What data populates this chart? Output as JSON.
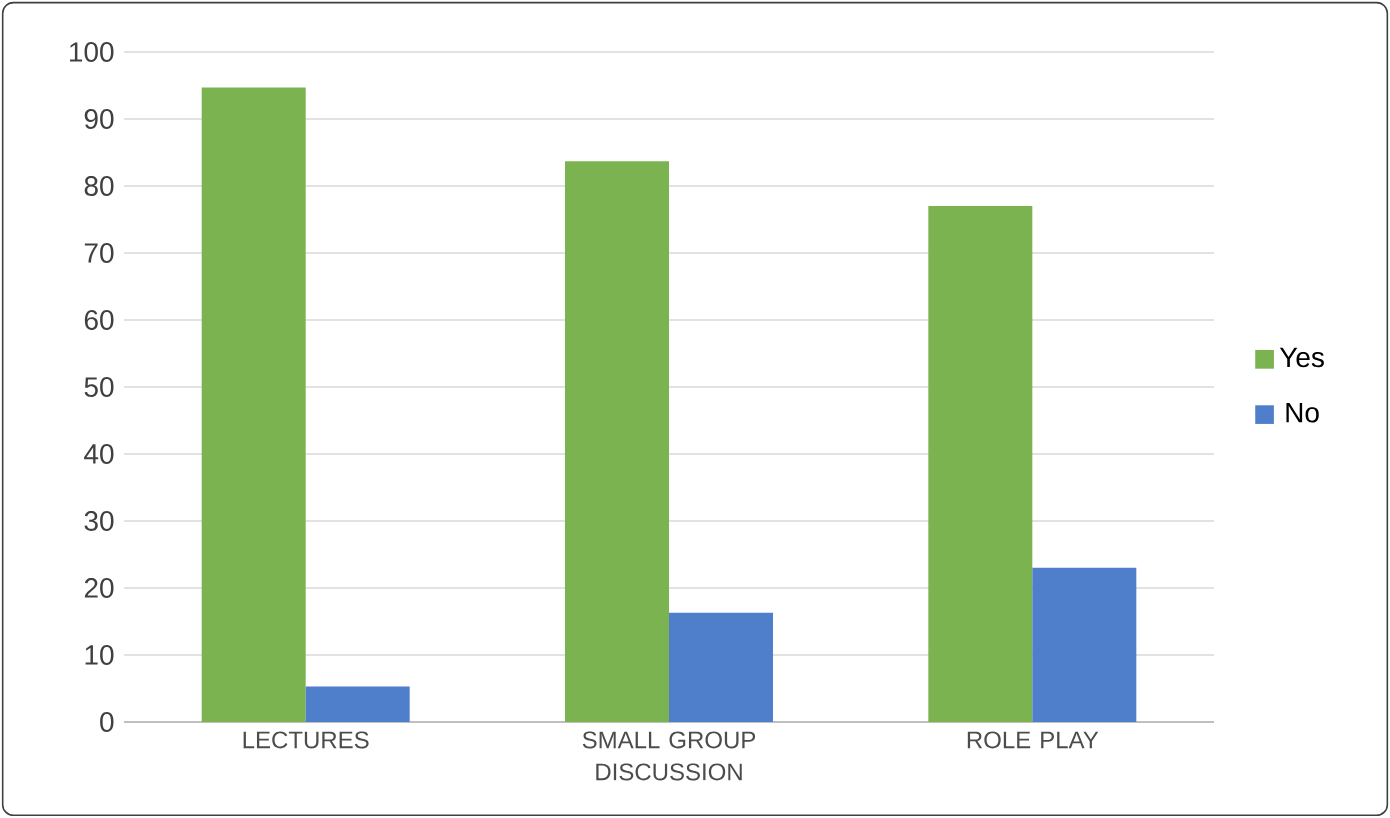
{
  "chart_data": {
    "type": "bar",
    "categories": [
      "LECTURES",
      "SMALL GROUP DISCUSSION",
      "ROLE PLAY"
    ],
    "series": [
      {
        "name": "Yes",
        "color": "#7ab350",
        "values": [
          94.7,
          83.7,
          77
        ]
      },
      {
        "name": "No",
        "color": "#4f7fcb",
        "values": [
          5.3,
          16.3,
          23
        ]
      }
    ],
    "ylim": [
      0,
      100
    ],
    "yticks": [
      0,
      10,
      20,
      30,
      40,
      50,
      60,
      70,
      80,
      90,
      100
    ],
    "grid": "y",
    "legend": "right"
  }
}
